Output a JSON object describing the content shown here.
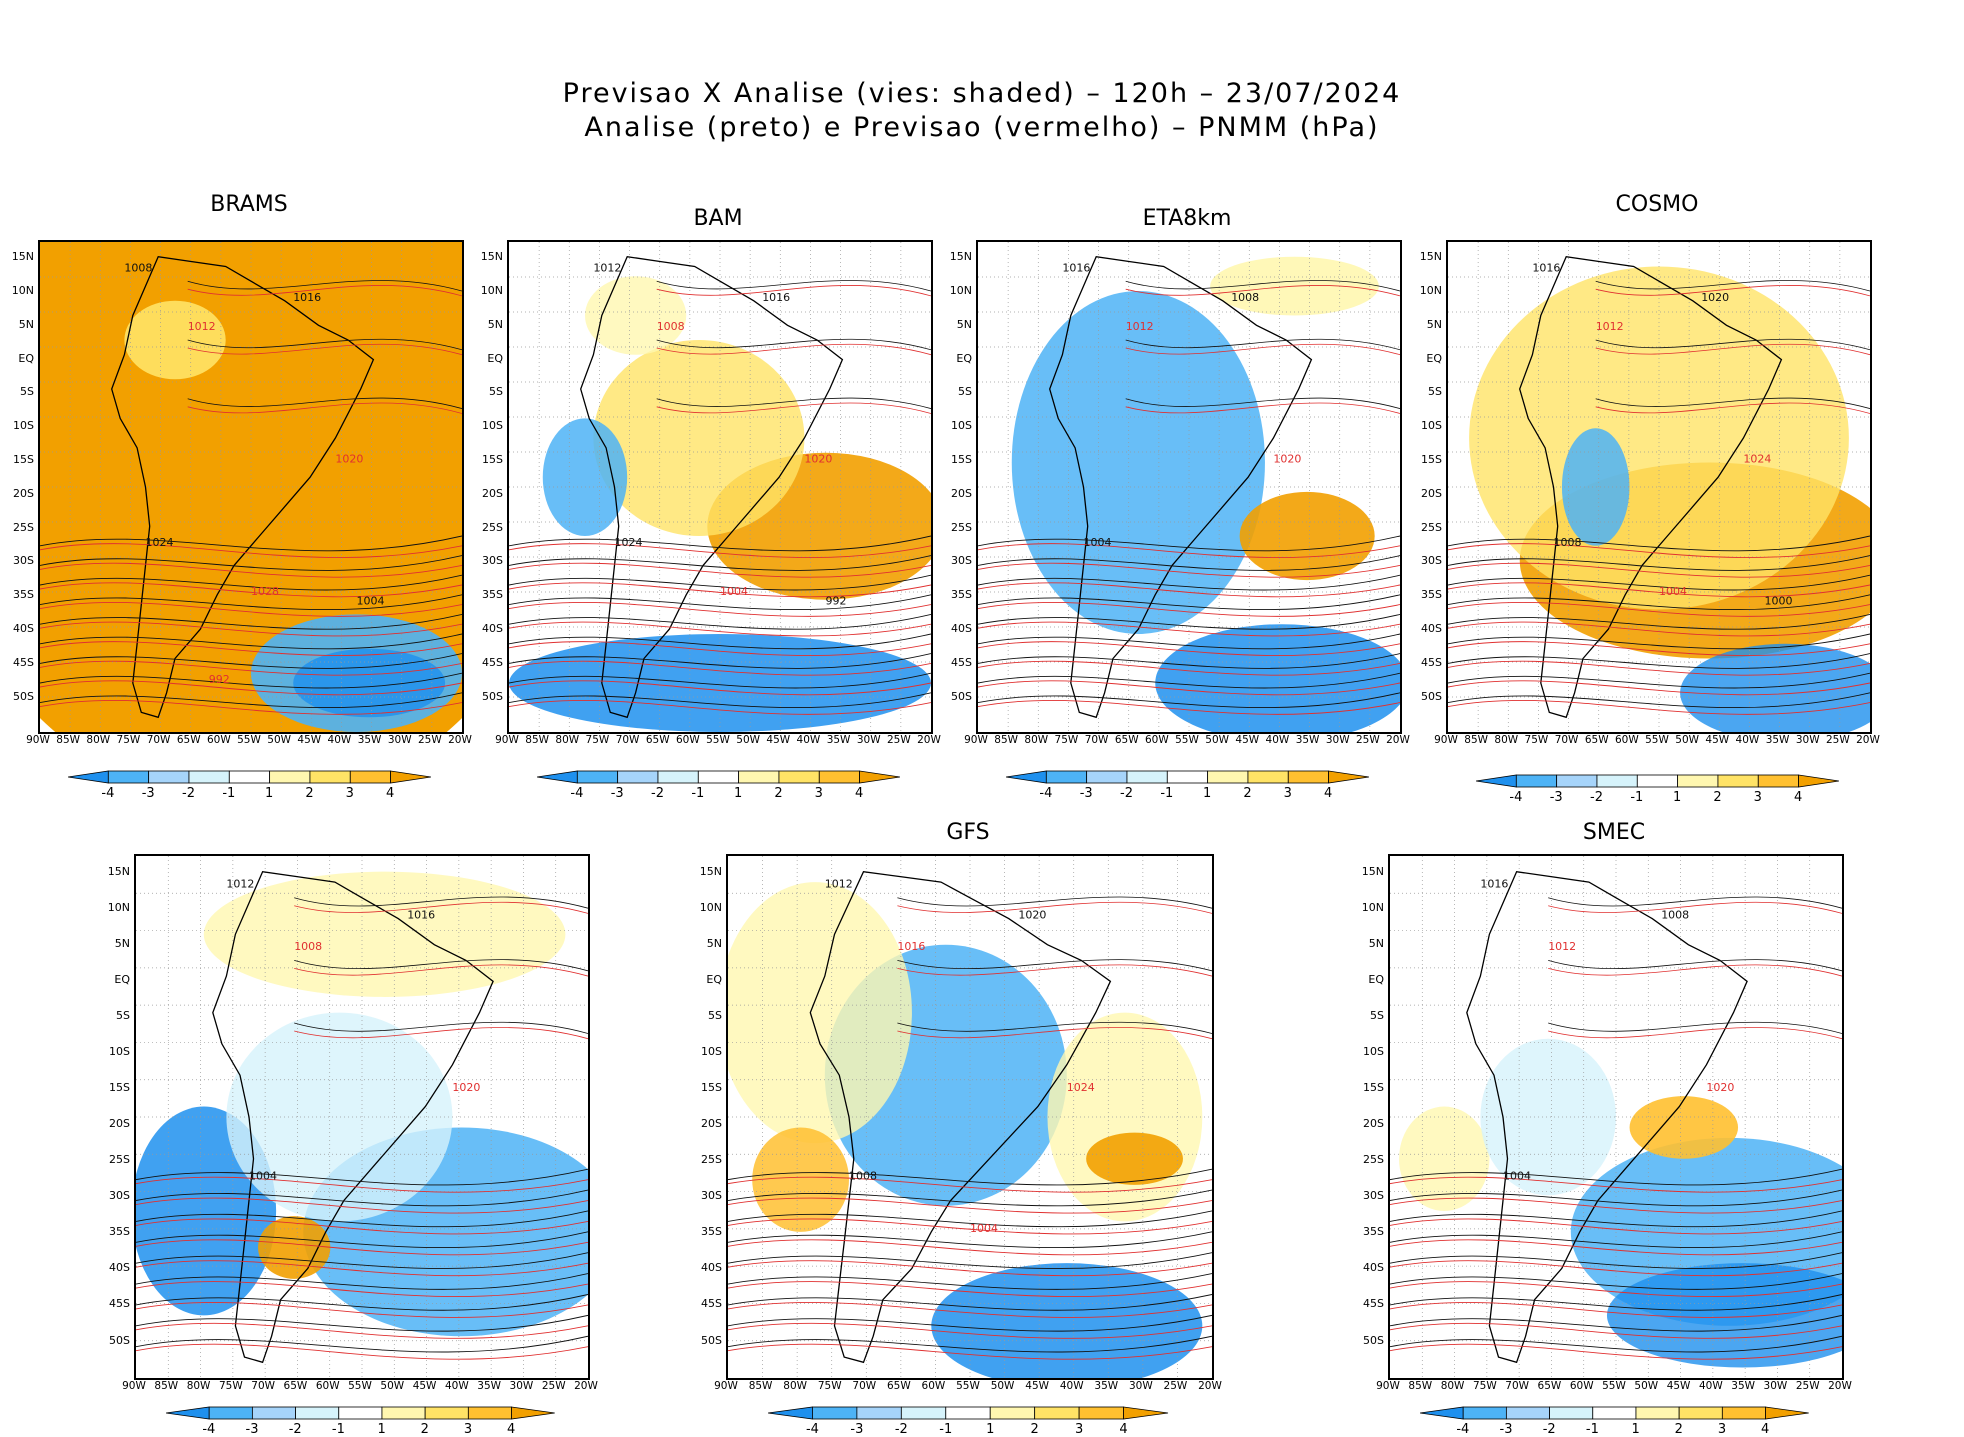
{
  "title": {
    "line1": "Previsao X Analise (vies: shaded) – 120h – 23/07/2024",
    "line2": "Analise (preto) e Previsao (vermelho) – PNMM (hPa)"
  },
  "lat_labels": [
    "15N",
    "10N",
    "5N",
    "EQ",
    "5S",
    "10S",
    "15S",
    "20S",
    "25S",
    "30S",
    "35S",
    "40S",
    "45S",
    "50S"
  ],
  "lon_labels": [
    "90W",
    "85W",
    "80W",
    "75W",
    "70W",
    "65W",
    "60W",
    "55W",
    "50W",
    "45W",
    "40W",
    "35W",
    "30W",
    "25W",
    "20W"
  ],
  "colorbar": {
    "labels": [
      "-4",
      "-3",
      "-2",
      "-1",
      "1",
      "2",
      "3",
      "4"
    ],
    "colors": [
      "#1e90ee",
      "#4db3f6",
      "#a6d4fa",
      "#d6f3fb",
      "#ffffff",
      "#fff7b0",
      "#ffe366",
      "#ffc030",
      "#f2a000"
    ]
  },
  "panels": [
    {
      "name": "BRAMS",
      "bias": "warm-strong",
      "isobars": [
        "1008",
        "1012",
        "1016",
        "1020",
        "1024",
        "1028",
        "1004",
        "992"
      ]
    },
    {
      "name": "BAM",
      "bias": "mixed",
      "isobars": [
        "1012",
        "1008",
        "1016",
        "1020",
        "1024",
        "1004",
        "992"
      ]
    },
    {
      "name": "ETA8km",
      "bias": "cold",
      "isobars": [
        "1016",
        "1012",
        "1008",
        "1020",
        "1004"
      ]
    },
    {
      "name": "COSMO",
      "bias": "warm",
      "isobars": [
        "1016",
        "1012",
        "1020",
        "1024",
        "1008",
        "1004",
        "1000"
      ]
    },
    {
      "name": "",
      "bias": "mixed-cold",
      "isobars": [
        "1012",
        "1008",
        "1016",
        "1020",
        "1004"
      ]
    },
    {
      "name": "GFS",
      "bias": "cold-center",
      "isobars": [
        "1012",
        "1016",
        "1020",
        "1024",
        "1008",
        "1004"
      ]
    },
    {
      "name": "SMEC",
      "bias": "neutral",
      "isobars": [
        "1016",
        "1012",
        "1008",
        "1020",
        "1004"
      ]
    }
  ]
}
